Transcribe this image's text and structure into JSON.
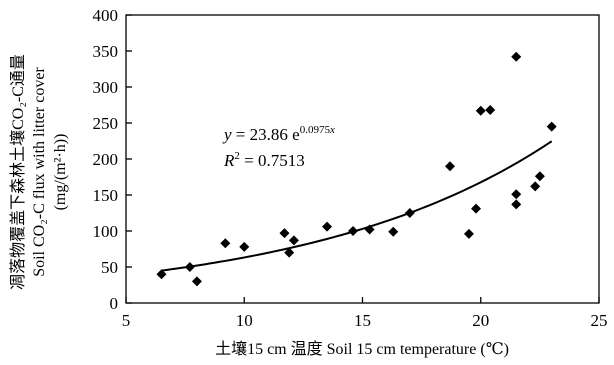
{
  "chart_data": {
    "type": "scatter",
    "xlabel": "土壤15 cm 温度 Soil 15 cm temperature (℃)",
    "ylabel_lines": [
      "凋落物覆盖下森林土壤CO₂-C通量",
      "Soil CO₂-C flux with litter cover",
      "(mg/(m²·h))"
    ],
    "xlim": [
      5,
      25
    ],
    "ylim": [
      0,
      400
    ],
    "xticks": [
      "5",
      "10",
      "15",
      "20",
      "25"
    ],
    "yticks": [
      "0",
      "50",
      "100",
      "150",
      "200",
      "250",
      "300",
      "350",
      "400"
    ],
    "grid": false,
    "marker": "diamond",
    "marker_color": "#000000",
    "points": [
      {
        "x": 6.5,
        "y": 40
      },
      {
        "x": 7.7,
        "y": 50
      },
      {
        "x": 8.0,
        "y": 30
      },
      {
        "x": 9.2,
        "y": 83
      },
      {
        "x": 10.0,
        "y": 78
      },
      {
        "x": 11.7,
        "y": 97
      },
      {
        "x": 11.9,
        "y": 70
      },
      {
        "x": 12.1,
        "y": 87
      },
      {
        "x": 13.5,
        "y": 106
      },
      {
        "x": 14.6,
        "y": 100
      },
      {
        "x": 15.3,
        "y": 102
      },
      {
        "x": 16.3,
        "y": 99
      },
      {
        "x": 17.0,
        "y": 125
      },
      {
        "x": 18.7,
        "y": 190
      },
      {
        "x": 19.5,
        "y": 96
      },
      {
        "x": 19.8,
        "y": 131
      },
      {
        "x": 20.0,
        "y": 267
      },
      {
        "x": 20.4,
        "y": 268
      },
      {
        "x": 21.5,
        "y": 342
      },
      {
        "x": 21.5,
        "y": 137
      },
      {
        "x": 21.5,
        "y": 151
      },
      {
        "x": 22.3,
        "y": 162
      },
      {
        "x": 22.5,
        "y": 176
      },
      {
        "x": 23.0,
        "y": 245
      }
    ],
    "fit": {
      "type": "exponential",
      "a": 23.86,
      "b": 0.0975,
      "x_range": [
        6.5,
        23.0
      ],
      "equation_parts": {
        "lhs": "y",
        "eq": " = 23.86 e",
        "exp": "0.0975",
        "var": "x"
      },
      "r2_parts": {
        "lhs": "R",
        "sup": "2",
        "rest": " = 0.7513"
      }
    }
  }
}
